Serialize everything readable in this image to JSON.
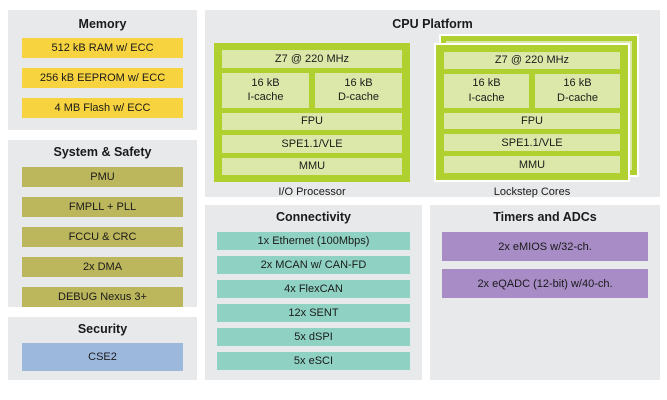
{
  "diagram": {
    "memory": {
      "title": "Memory",
      "blocks": [
        "512 kB RAM w/ ECC",
        "256 kB EEPROM w/ ECC",
        "4 MB Flash w/ ECC"
      ]
    },
    "system_safety": {
      "title": "System & Safety",
      "blocks": [
        "PMU",
        "FMPLL + PLL",
        "FCCU & CRC",
        "2x DMA",
        "DEBUG Nexus 3+"
      ]
    },
    "security": {
      "title": "Security",
      "blocks": [
        "CSE2"
      ]
    },
    "cpu_platform": {
      "title": "CPU Platform",
      "cores": [
        {
          "label": "I/O Processor",
          "clock": "Z7 @ 220 MHz",
          "icache": {
            "size": "16 kB",
            "name": "I-cache"
          },
          "dcache": {
            "size": "16 kB",
            "name": "D-cache"
          },
          "fpu": "FPU",
          "spe": "SPE1.1/VLE",
          "mmu": "MMU",
          "stacked": false
        },
        {
          "label": "Lockstep Cores",
          "clock": "Z7 @ 220 MHz",
          "icache": {
            "size": "16 kB",
            "name": "I-cache"
          },
          "dcache": {
            "size": "16 kB",
            "name": "D-cache"
          },
          "fpu": "FPU",
          "spe": "SPE1.1/VLE",
          "mmu": "MMU",
          "stacked": true
        }
      ]
    },
    "connectivity": {
      "title": "Connectivity",
      "blocks": [
        "1x Ethernet (100Mbps)",
        "2x MCAN w/ CAN-FD",
        "4x FlexCAN",
        "12x SENT",
        "5x dSPI",
        "5x eSCI"
      ]
    },
    "timers_adcs": {
      "title": "Timers and ADCs",
      "blocks": [
        "2x eMIOS w/32-ch.",
        "2x eQADC (12-bit) w/40-ch."
      ]
    }
  },
  "colors": {
    "memory_block": "#F6D33F",
    "system_block": "#BCB65C",
    "security_block": "#9CB8DD",
    "core_border": "#AFD02F",
    "core_fill": "#DCE8A9",
    "connectivity_block": "#8FD2C3",
    "timers_block": "#A78CC5",
    "panel_background": "#E8E9EA",
    "text": "#1A1A1A"
  }
}
